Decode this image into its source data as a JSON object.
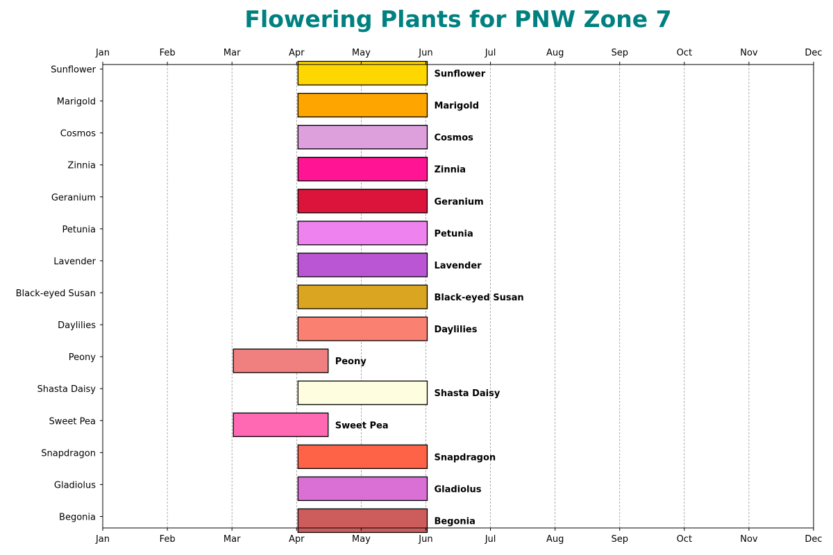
{
  "chart_data": {
    "type": "bar",
    "orientation": "horizontal",
    "title": "Flowering Plants for PNW Zone 7",
    "title_color": "#008080",
    "xlabel": "",
    "ylabel": "",
    "months": [
      "Jan",
      "Feb",
      "Mar",
      "Apr",
      "May",
      "Jun",
      "Jul",
      "Aug",
      "Sep",
      "Oct",
      "Nov",
      "Dec"
    ],
    "xlim": [
      "Jan",
      "Dec"
    ],
    "grid": "vertical dashed",
    "axis_labels_top_and_bottom": true,
    "plants": [
      {
        "name": "Sunflower",
        "start": "Apr",
        "end": "Jun",
        "color": "#FFD700"
      },
      {
        "name": "Marigold",
        "start": "Apr",
        "end": "Jun",
        "color": "#FFA500"
      },
      {
        "name": "Cosmos",
        "start": "Apr",
        "end": "Jun",
        "color": "#DDA0DD"
      },
      {
        "name": "Zinnia",
        "start": "Apr",
        "end": "Jun",
        "color": "#FF1493"
      },
      {
        "name": "Geranium",
        "start": "Apr",
        "end": "Jun",
        "color": "#DC143C"
      },
      {
        "name": "Petunia",
        "start": "Apr",
        "end": "Jun",
        "color": "#EE82EE"
      },
      {
        "name": "Lavender",
        "start": "Apr",
        "end": "Jun",
        "color": "#BA55D3"
      },
      {
        "name": "Black-eyed Susan",
        "start": "Apr",
        "end": "Jun",
        "color": "#DAA520"
      },
      {
        "name": "Daylilies",
        "start": "Apr",
        "end": "Jun",
        "color": "#FA8072"
      },
      {
        "name": "Peony",
        "start": "Mar",
        "end": "Apr 15",
        "color": "#F08080"
      },
      {
        "name": "Shasta Daisy",
        "start": "Apr",
        "end": "Jun",
        "color": "#FFFDE0"
      },
      {
        "name": "Sweet Pea",
        "start": "Mar",
        "end": "Apr 15",
        "color": "#FF69B4"
      },
      {
        "name": "Snapdragon",
        "start": "Apr",
        "end": "Jun",
        "color": "#FF6347"
      },
      {
        "name": "Gladiolus",
        "start": "Apr",
        "end": "Jun",
        "color": "#DA70D6"
      },
      {
        "name": "Begonia",
        "start": "Apr",
        "end": "Jun",
        "color": "#CD5C5C"
      }
    ]
  }
}
